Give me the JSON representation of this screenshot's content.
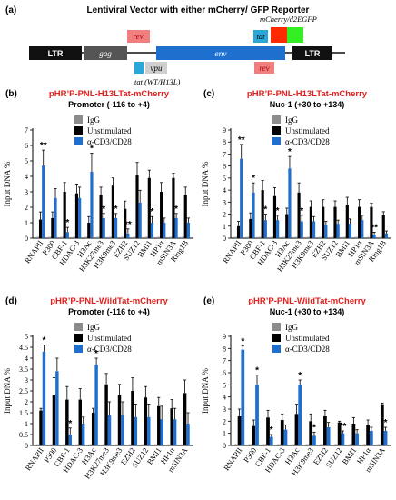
{
  "figure": {
    "title": "Lentiviral Vector with either mCherry/ GFP Reporter",
    "colors": {
      "igg": "#8c8c8c",
      "unstim": "#000000",
      "stim": "#1f6fcf",
      "title_red": "#e0201c",
      "star_color": "#000000"
    }
  },
  "diagram": {
    "label": "(a)",
    "blocks": {
      "ltr_left": "LTR",
      "gag": "gag",
      "rev_top": "rev",
      "vpu": "vpu",
      "tat_small": "",
      "env": "env",
      "tat_top": "tat",
      "rev_bottom": "rev",
      "ltr_right": "LTR"
    },
    "reporter_label": "mCherry/d2EGFP",
    "tat_note": "tat (WT/H13L)",
    "colors": {
      "ltr": "#111111",
      "gag": "#555555",
      "rev": "#f08080",
      "vpu": "#cfcfcf",
      "tat_small": "#2aa7d8",
      "env": "#1f6fcf",
      "tat_top": "#2aa7d8",
      "mcherry": "#ff2a00",
      "gfp": "#33ee22"
    }
  },
  "chart_data": [
    {
      "type": "bar",
      "panel": "(b)",
      "title": "pHR’P-PNL-H13LTat-mCherry",
      "subtitle": "Promoter (-116 to +4)",
      "ylabel": "Input DNA %",
      "ylim": [
        0,
        7
      ],
      "yticks": [
        0,
        1,
        2,
        3,
        4,
        5,
        6,
        7
      ],
      "legend_position": "top-right",
      "categories": [
        "RNAPII",
        "P300",
        "CBF-1",
        "HDAC-3",
        "H3Ac",
        "H3K27me3",
        "H3K9me3",
        "EZH2",
        "SUZ12",
        "BMI1",
        "HP1α",
        "mSIN3A",
        "Ring1B"
      ],
      "series": [
        {
          "name": "IgG",
          "values": [
            0.08,
            0.08,
            0.08,
            0.08,
            0.08,
            0.08,
            0.08,
            0.08,
            0.08,
            0.08,
            0.08,
            0.08,
            0.08
          ]
        },
        {
          "name": "Unstimulated",
          "values": [
            1.2,
            1.3,
            3.0,
            2.9,
            1.0,
            2.8,
            3.4,
            1.9,
            4.1,
            3.9,
            3.0,
            3.9,
            2.8
          ]
        },
        {
          "name": "α-CD3/CD28",
          "values": [
            4.7,
            2.6,
            0.4,
            2.6,
            4.3,
            1.3,
            1.3,
            0.3,
            2.3,
            1.0,
            1.0,
            1.3,
            1.0
          ]
        }
      ],
      "errors": {
        "Unstimulated": [
          0.5,
          0.4,
          0.6,
          0.6,
          0.4,
          0.5,
          0.5,
          0.5,
          0.8,
          0.5,
          0.6,
          0.3,
          0.5
        ],
        "α-CD3/CD28": [
          1.0,
          0.6,
          0.3,
          0.7,
          1.2,
          0.3,
          0.3,
          0.3,
          0.8,
          0.4,
          0.3,
          0.3,
          0.3
        ]
      },
      "significance": [
        "**",
        "",
        "*",
        "",
        "*",
        "*",
        "*",
        "**",
        "",
        "*",
        "",
        "*",
        ""
      ]
    },
    {
      "type": "bar",
      "panel": "(c)",
      "title": "pHR’P-PNL-H13LTat-mCherry",
      "subtitle": "Nuc-1 (+30 to +134)",
      "ylabel": "Input DNA %",
      "ylim": [
        0,
        9
      ],
      "yticks": [
        0,
        1,
        2,
        3,
        4,
        5,
        6,
        7,
        8,
        9
      ],
      "legend_position": "top-right",
      "categories": [
        "RNAPII",
        "P300",
        "CBF-1",
        "HDAC-3",
        "H3Ac",
        "H3K27me3",
        "H3K9me3",
        "EZH2",
        "SUZ12",
        "BMI1",
        "HP1α",
        "mSIN3A",
        "Ring1B"
      ],
      "series": [
        {
          "name": "IgG",
          "values": [
            0.1,
            0.1,
            0.1,
            0.1,
            0.1,
            0.1,
            0.1,
            0.1,
            0.1,
            0.1,
            0.1,
            0.1,
            0.1
          ]
        },
        {
          "name": "Unstimulated",
          "values": [
            1.0,
            1.6,
            4.0,
            3.5,
            2.0,
            3.8,
            2.6,
            2.6,
            2.6,
            2.8,
            2.6,
            2.6,
            1.9
          ]
        },
        {
          "name": "α-CD3/CD28",
          "values": [
            6.6,
            3.8,
            1.5,
            1.5,
            5.8,
            1.4,
            1.4,
            1.1,
            1.2,
            1.2,
            1.5,
            0.3,
            0.4
          ]
        }
      ],
      "errors": {
        "Unstimulated": [
          0.4,
          0.5,
          0.8,
          0.7,
          0.5,
          0.8,
          0.5,
          0.6,
          0.5,
          0.6,
          0.6,
          0.3,
          0.3
        ],
        "α-CD3/CD28": [
          1.2,
          0.8,
          0.5,
          0.4,
          1.0,
          0.5,
          0.4,
          0.3,
          0.3,
          0.4,
          0.4,
          0.2,
          0.2
        ]
      },
      "significance": [
        "**",
        "*",
        "*",
        "*",
        "*",
        "*",
        "",
        "",
        "",
        "",
        "",
        "**",
        ""
      ]
    },
    {
      "type": "bar",
      "panel": "(d)",
      "title": "pHR’P-PNL-WildTat-mCherry",
      "subtitle": "Promoter (-116 to +4)",
      "ylabel": "Input DNA %",
      "ylim": [
        0,
        5
      ],
      "yticks": [
        0,
        0.5,
        1,
        1.5,
        2,
        2.5,
        3,
        3.5,
        4,
        4.5,
        5
      ],
      "legend_position": "top-right",
      "categories": [
        "RNAPII",
        "P300",
        "CBF-1",
        "HDAC-3",
        "H3Ac",
        "H3K27me3",
        "H3K9me3",
        "EZH2",
        "SUZ12",
        "BMI1",
        "HP1α",
        "mSIN3A"
      ],
      "series": [
        {
          "name": "IgG",
          "values": [
            0.05,
            0.05,
            0.05,
            0.05,
            0.05,
            0.05,
            0.05,
            0.05,
            0.05,
            0.05,
            0.05,
            0.05
          ]
        },
        {
          "name": "Unstimulated",
          "values": [
            1.6,
            2.3,
            2.1,
            2.1,
            1.5,
            2.8,
            2.3,
            2.5,
            2.2,
            1.8,
            1.7,
            2.4
          ]
        },
        {
          "name": "α-CD3/CD28",
          "values": [
            4.3,
            3.4,
            0.5,
            1.0,
            3.7,
            1.4,
            1.4,
            1.3,
            1.3,
            1.2,
            1.2,
            1.0
          ]
        }
      ],
      "errors": {
        "Unstimulated": [
          0.1,
          0.8,
          0.6,
          0.5,
          0.2,
          0.5,
          0.5,
          0.6,
          0.5,
          0.4,
          0.4,
          0.6
        ],
        "α-CD3/CD28": [
          0.3,
          0.6,
          0.3,
          0.3,
          0.3,
          0.6,
          0.6,
          0.6,
          0.6,
          0.6,
          0.5,
          0.5
        ]
      },
      "significance": [
        "*",
        "",
        "*",
        "",
        "*",
        "",
        "",
        "",
        "",
        "",
        "",
        ""
      ]
    },
    {
      "type": "bar",
      "panel": "(e)",
      "title": "pHR’P-PNL-WildTat-mCherry",
      "subtitle": "Nuc-1 (+30 to +134)",
      "ylabel": "Input DNA %",
      "ylim": [
        0,
        9
      ],
      "yticks": [
        0,
        1,
        2,
        3,
        4,
        5,
        6,
        7,
        8,
        9
      ],
      "legend_position": "top-right",
      "categories": [
        "RNAPII",
        "P300",
        "CBF-1",
        "HDAC-3",
        "H3Ac",
        "H3K9me3",
        "EZH2",
        "SUZ12",
        "BMI1",
        "HP1α",
        "mSIN3A"
      ],
      "series": [
        {
          "name": "IgG",
          "values": [
            0.1,
            0.1,
            0.1,
            0.1,
            0.1,
            0.1,
            0.1,
            0.1,
            0.1,
            0.1,
            0.1
          ]
        },
        {
          "name": "Unstimulated",
          "values": [
            2.4,
            1.6,
            2.3,
            2.1,
            2.6,
            2.0,
            2.4,
            1.9,
            1.8,
            1.7,
            3.4
          ]
        },
        {
          "name": "α-CD3/CD28",
          "values": [
            7.9,
            5.0,
            0.7,
            1.3,
            5.0,
            0.8,
            1.5,
            1.0,
            1.0,
            1.2,
            1.2
          ]
        }
      ],
      "errors": {
        "Unstimulated": [
          0.6,
          0.5,
          0.6,
          0.5,
          0.8,
          0.6,
          0.5,
          0.1,
          0.5,
          0.4,
          0.1
        ],
        "α-CD3/CD28": [
          0.3,
          0.8,
          0.2,
          0.4,
          0.4,
          0.3,
          0.4,
          0.2,
          0.3,
          0.3,
          0.3
        ]
      },
      "significance": [
        "*",
        "*",
        "*",
        "",
        "*",
        "*",
        "",
        "**",
        "",
        "",
        "*"
      ]
    }
  ]
}
